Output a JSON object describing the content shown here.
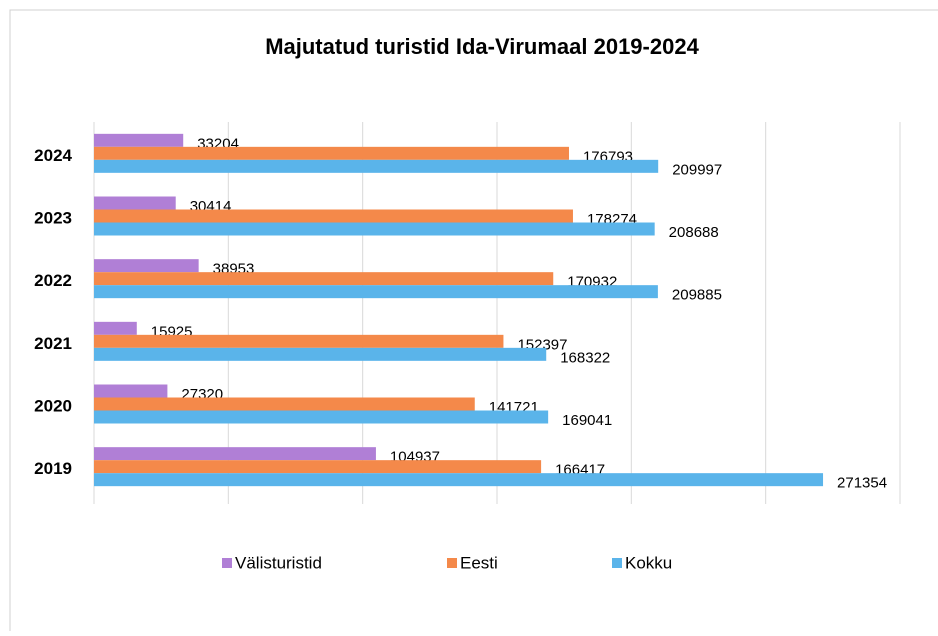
{
  "chart_data": {
    "type": "hbar",
    "title": "Majutatud turistid Ida-Virumaal 2019-2024",
    "categories": [
      "2019",
      "2020",
      "2021",
      "2022",
      "2023",
      "2024"
    ],
    "series": [
      {
        "name": "Välisturistid",
        "color": "#b07fd6",
        "values": [
          104937,
          27320,
          15925,
          38953,
          30414,
          33204
        ]
      },
      {
        "name": "Eesti",
        "color": "#f4894a",
        "values": [
          166417,
          141721,
          152397,
          170932,
          178274,
          176793
        ]
      },
      {
        "name": "Kokku",
        "color": "#5ab4ea",
        "values": [
          271354,
          169041,
          168322,
          209885,
          208688,
          209997
        ]
      }
    ],
    "xlim": [
      0,
      300000
    ],
    "xticks": [
      0,
      50000,
      100000,
      150000,
      200000,
      250000,
      300000
    ],
    "grid": true,
    "legend": "bottom"
  }
}
